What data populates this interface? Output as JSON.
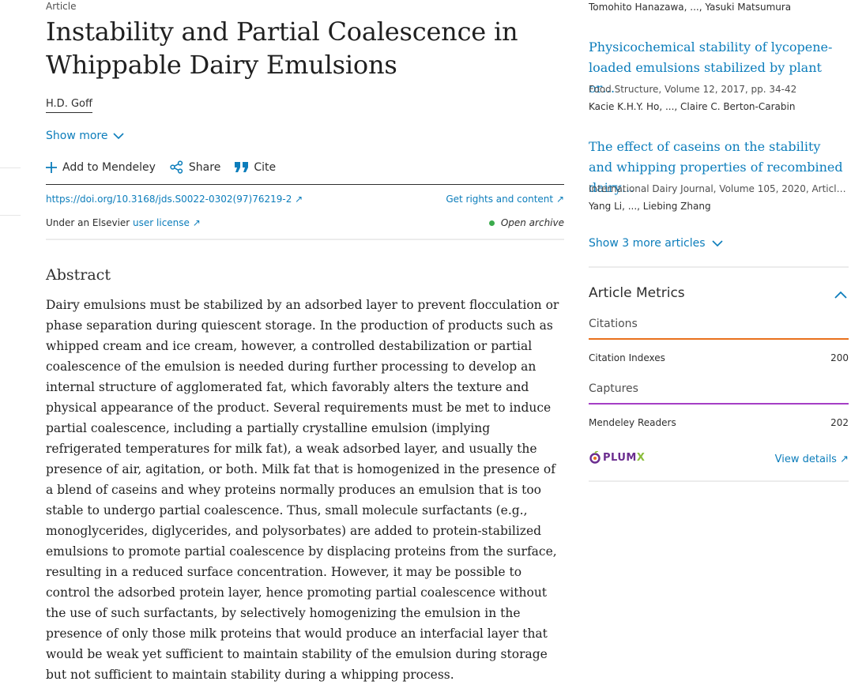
{
  "article": {
    "type_label": "Article",
    "title": "Instability and Partial Coalescence in Whippable Dairy Emulsions",
    "author": "H.D. Goff",
    "show_more": "Show more",
    "actions": {
      "mendeley": "Add to Mendeley",
      "share": "Share",
      "cite": "Cite"
    },
    "doi": "https://doi.org/10.3168/jds.S0022-0302(97)76219-2",
    "rights": "Get rights and content",
    "license_prefix": "Under an Elsevier",
    "license_link": "user license",
    "open_status": "Open archive",
    "abstract_heading": "Abstract",
    "abstract_text": "Dairy emulsions must be stabilized by an adsorbed layer to prevent flocculation or phase separation during quiescent storage. In the production of products such as whipped cream and ice cream, however, a controlled destabilization or partial coalescence of the emulsion is needed during further processing to develop an internal structure of agglomerated fat, which favorably alters the texture and physical appearance of the product. Several requirements must be met to induce partial coalescence, including a partially crystalline emulsion (implying refrigerated temperatures for milk fat), a weak adsorbed layer, and usually the presence of air, agitation, or both. Milk fat that is homogenized in the presence of a blend of caseins and whey proteins normally produces an emulsion that is too stable to undergo partial coalescence. Thus, small molecule surfactants (e.g., monoglycerides, diglycerides, and polysorbates) are added to protein-stabilized emulsions to promote partial coalescence by displacing proteins from the surface, resulting in a reduced surface concentration. However, it may be possible to control the adsorbed protein layer, hence promoting partial coalescence without the use of such surfactants, by selectively homogenizing the emulsion in the presence of only those milk proteins that would produce an interfacial layer that would be weak yet sufficient to maintain stability of the emulsion during storage but not sufficient to maintain stability during a whipping process."
  },
  "sidebar": {
    "top_authors": "Tomohito Hanazawa, ..., Yasuki Matsumura",
    "recommended": [
      {
        "title": "Physicochemical stability of lycopene-loaded emulsions stabilized by plant or…",
        "source": "Food Structure, Volume 12, 2017, pp. 34-42",
        "authors": "Kacie K.H.Y. Ho, ..., Claire C. Berton-Carabin"
      },
      {
        "title": "The effect of caseins on the stability and whipping properties of recombined dairy…",
        "source": "International Dairy Journal, Volume 105, 2020, Article …",
        "authors": "Yang Li, ..., Liebing Zhang"
      }
    ],
    "show_more_articles": "Show 3 more articles",
    "metrics": {
      "heading": "Article Metrics",
      "citations_label": "Citations",
      "citation_indexes_label": "Citation Indexes",
      "citation_indexes_value": "200",
      "captures_label": "Captures",
      "mendeley_readers_label": "Mendeley Readers",
      "mendeley_readers_value": "202",
      "plumx_logo": "PLUMX",
      "view_details": "View details",
      "citations_color": "#e9711c",
      "captures_color": "#a53ec5"
    }
  }
}
